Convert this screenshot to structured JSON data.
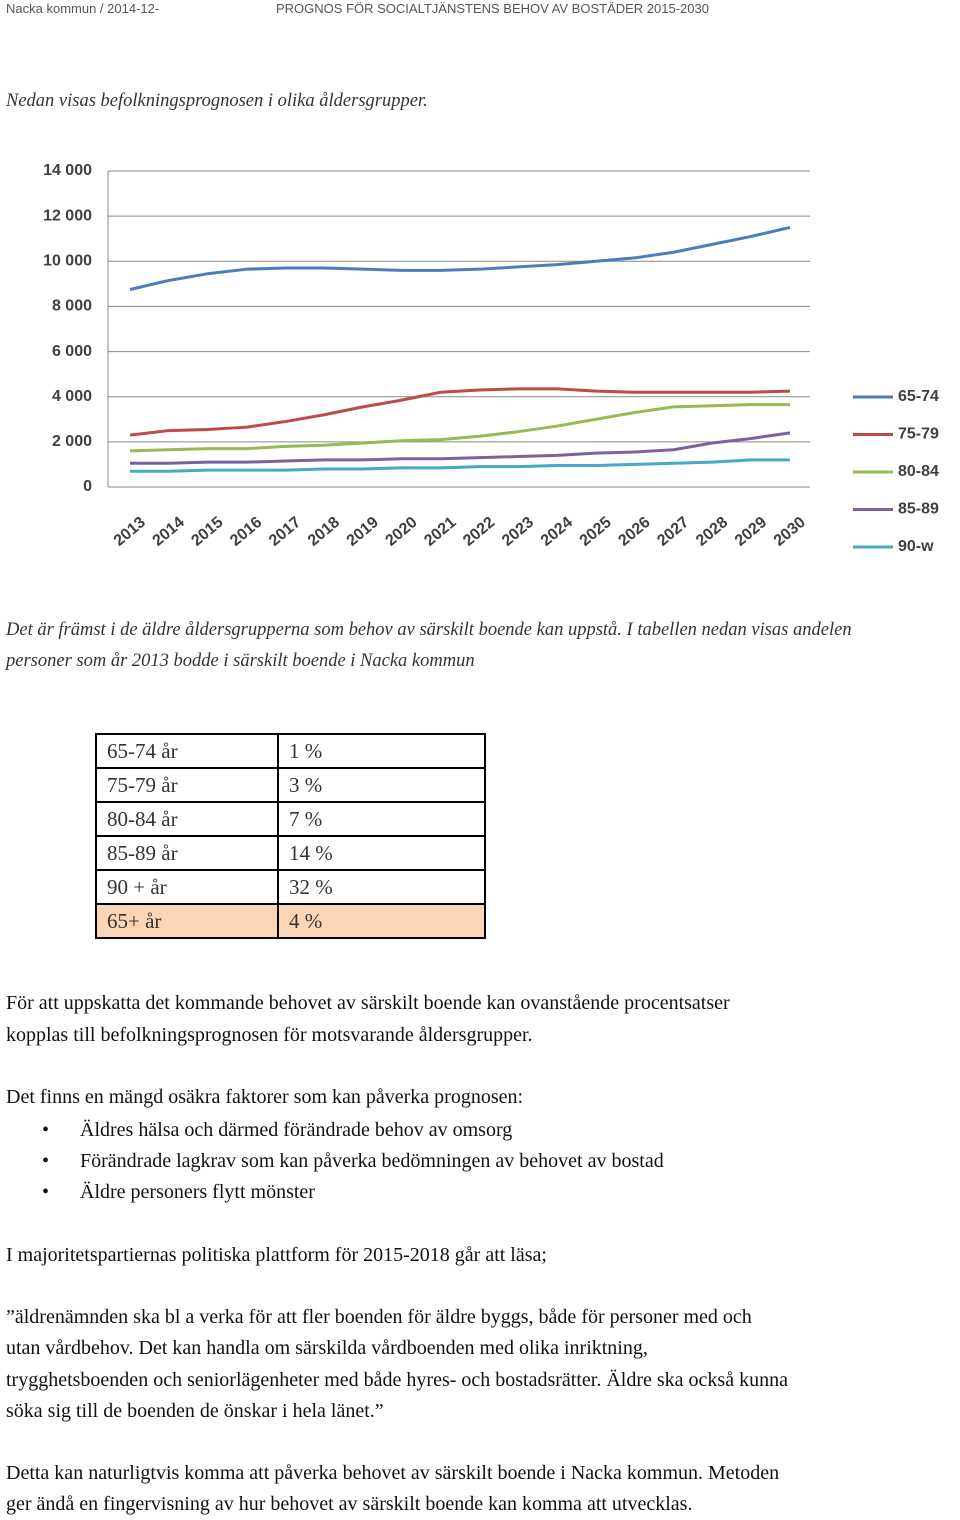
{
  "header": {
    "left": "Nacka kommun  /  2014-12-",
    "right": "PROGNOS FÖR SOCIALTJÄNSTENS BEHOV AV BOSTÄDER 2015-2030"
  },
  "intro": "Nedan visas befolkningsprognosen i olika åldersgrupper.",
  "chart_data": {
    "type": "line",
    "categories": [
      "2013",
      "2014",
      "2015",
      "2016",
      "2017",
      "2018",
      "2019",
      "2020",
      "2021",
      "2022",
      "2023",
      "2024",
      "2025",
      "2026",
      "2027",
      "2028",
      "2029",
      "2030"
    ],
    "series": [
      {
        "name": "65-74",
        "color": "#4a7ebb",
        "values": [
          8750,
          9150,
          9450,
          9650,
          9700,
          9700,
          9650,
          9600,
          9600,
          9650,
          9750,
          9850,
          10000,
          10150,
          10400,
          10750,
          11100,
          11500
        ]
      },
      {
        "name": "75-79",
        "color": "#be4b48",
        "values": [
          2300,
          2500,
          2550,
          2650,
          2900,
          3200,
          3550,
          3850,
          4200,
          4300,
          4350,
          4350,
          4250,
          4200,
          4200,
          4200,
          4200,
          4250
        ]
      },
      {
        "name": "80-84",
        "color": "#98b954",
        "values": [
          1600,
          1650,
          1700,
          1700,
          1800,
          1850,
          1950,
          2050,
          2100,
          2250,
          2450,
          2700,
          3000,
          3300,
          3550,
          3600,
          3650,
          3650
        ]
      },
      {
        "name": "85-89",
        "color": "#7d60a0",
        "values": [
          1050,
          1050,
          1100,
          1100,
          1150,
          1200,
          1200,
          1250,
          1250,
          1300,
          1350,
          1400,
          1500,
          1550,
          1650,
          1950,
          2150,
          2400
        ]
      },
      {
        "name": "90-w",
        "color": "#46aac5",
        "values": [
          700,
          700,
          750,
          750,
          750,
          800,
          800,
          850,
          850,
          900,
          900,
          950,
          950,
          1000,
          1050,
          1100,
          1200,
          1200
        ]
      }
    ],
    "ylim": [
      0,
      14000
    ],
    "yticks": [
      0,
      {
        "value": 2000,
        "label": "2 000"
      },
      {
        "value": 4000,
        "label": "4 000"
      },
      {
        "value": 6000,
        "label": "6 000"
      },
      {
        "value": 8000,
        "label": "8 000"
      },
      {
        "value": 10000,
        "label": "10 000"
      },
      {
        "value": 12000,
        "label": "12 000"
      },
      {
        "value": 14000,
        "label": "14 000"
      }
    ],
    "grid": true,
    "legend": "right"
  },
  "paragraph_1": [
    "Det är främst i de äldre åldersgrupperna som behov av särskilt boende kan uppstå. I tabellen nedan visas andelen",
    "personer som år 2013 bodde i särskilt boende i Nacka kommun"
  ],
  "table": {
    "rows": [
      [
        "65-74 år",
        "1 %"
      ],
      [
        "75-79 år",
        "3 %"
      ],
      [
        "80-84 år",
        "7 %"
      ],
      [
        "85-89 år",
        "14 %"
      ],
      [
        "90 + år",
        "32 %"
      ],
      [
        "65+ år",
        "4 %"
      ]
    ],
    "highlight_row": 5,
    "highlight_color": "#fbd5b5"
  },
  "paragraph_2": [
    "För att uppskatta det kommande behovet av särskilt boende kan ovanstående procentsatser",
    "kopplas till befolkningsprognosen för motsvarande åldersgrupper."
  ],
  "paragraph_3": {
    "text": "Det finns en mängd osäkra faktorer som kan påverka prognosen:",
    "bullets": [
      "Äldres hälsa och därmed förändrade behov av omsorg",
      "Förändrade lagkrav som kan påverka bedömningen av behovet av bostad",
      "Äldre personers flytt mönster"
    ]
  },
  "paragraph_4": "I majoritetspartiernas politiska plattform för 2015-2018 går att läsa;",
  "quote": [
    "”äldrenämnden ska bl a verka för att fler boenden för äldre byggs, både för personer med och",
    "utan vårdbehov. Det kan handla om särskilda vårdboenden med olika inriktning,",
    "trygghetsboenden och seniorlägenheter med både hyres- och bostadsrätter. Äldre ska också kunna",
    "söka sig till de boenden de önskar i hela länet.”"
  ],
  "paragraph_5": [
    "Detta kan naturligtvis komma att påverka behovet av särskilt boende i Nacka kommun. Metoden",
    "ger ändå en fingervisning av hur behovet av särskilt boende kan komma att utvecklas."
  ]
}
